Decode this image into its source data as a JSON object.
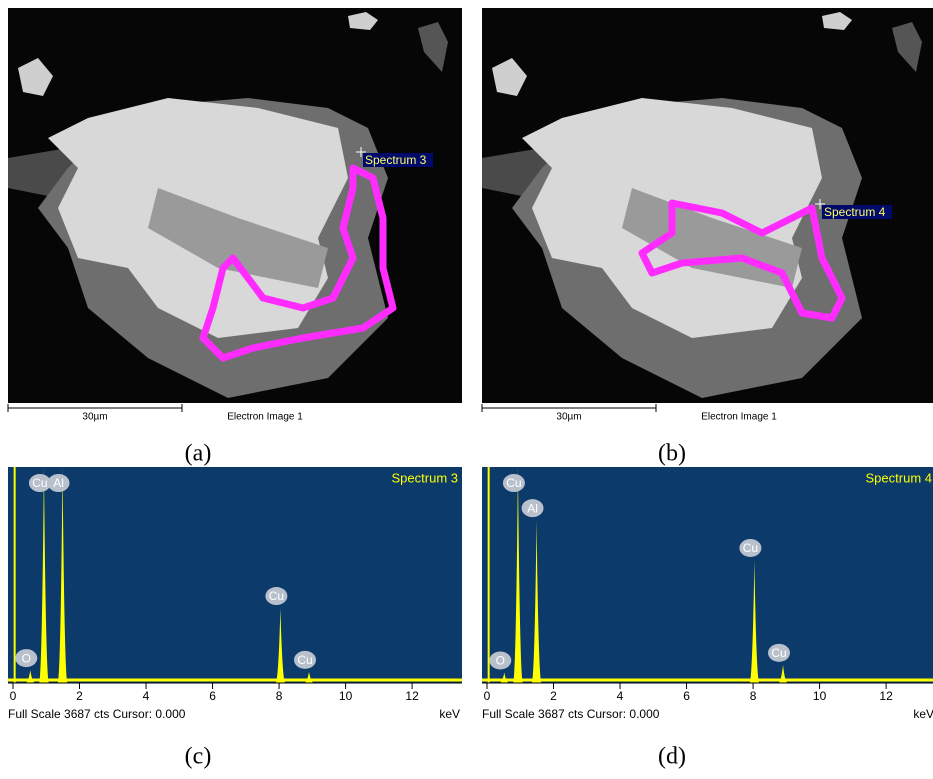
{
  "panels": [
    {
      "caption": "(a)",
      "image_label": "Electron Image 1",
      "scale_label": "30µm",
      "marker_label": "Spectrum 3"
    },
    {
      "caption": "(b)",
      "image_label": "Electron Image 1",
      "scale_label": "30µm",
      "marker_label": "Spectrum 4"
    }
  ],
  "chart_data": [
    {
      "type": "spectrum",
      "title": "Spectrum 3",
      "footer": "Full Scale 3687 cts Cursor: 0.000",
      "x_unit": "keV",
      "caption": "(c)",
      "xlim": [
        -0.15,
        13.5
      ],
      "xticks": [
        0,
        2,
        4,
        6,
        8,
        10,
        12
      ],
      "ylim": [
        0,
        3687
      ],
      "color": "#ffff00",
      "x": [
        0.52,
        0.93,
        1.49,
        8.04,
        8.9
      ],
      "values": [
        220,
        3687,
        3687,
        1280,
        190
      ],
      "peak_labels": [
        "O",
        "Cu",
        "Al",
        "Cu",
        "Cu"
      ]
    },
    {
      "type": "spectrum",
      "title": "Spectrum 4",
      "footer": "Full Scale 3687 cts Cursor: 0.000",
      "x_unit": "keV",
      "caption": "(d)",
      "xlim": [
        -0.15,
        13.5
      ],
      "xticks": [
        0,
        2,
        4,
        6,
        8,
        10,
        12
      ],
      "ylim": [
        0,
        3687
      ],
      "color": "#ffff00",
      "x": [
        0.52,
        0.93,
        1.49,
        8.04,
        8.9
      ],
      "values": [
        180,
        3687,
        2780,
        2100,
        310
      ],
      "peak_labels": [
        "O",
        "Cu",
        "Al",
        "Cu",
        "Cu"
      ]
    }
  ]
}
